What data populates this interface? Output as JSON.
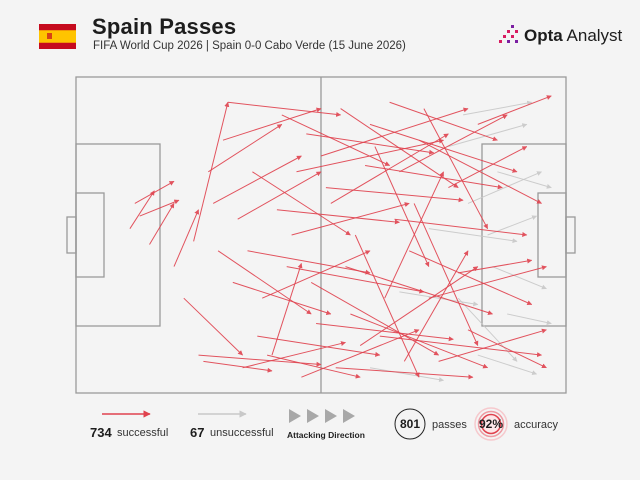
{
  "header": {
    "title": "Spain Passes",
    "subtitle": "FIFA World Cup 2026 | Spain 0-0 Cabo Verde (15 June 2026)",
    "brand_bold": "Opta",
    "brand_rest": " Analyst",
    "flag": "spain-flag",
    "brand_icon": "opta-logo-icon"
  },
  "colors": {
    "successful": "#e0424e",
    "unsuccessful": "#c8c8c8",
    "pitch_lines": "#9a9a9a",
    "flag_red": "#c60b1e",
    "flag_yellow": "#ffc400",
    "accent": "#d81b60"
  },
  "legend": {
    "successful_count": "734",
    "successful_label": "successful",
    "unsuccessful_count": "67",
    "unsuccessful_label": "unsuccessful",
    "direction_label": "Attacking Direction",
    "passes_value": "801",
    "passes_label": "passes",
    "accuracy_value": "92%",
    "accuracy_label": "accuracy",
    "accuracy_fraction": 0.92
  },
  "chart_data": {
    "type": "pass-map",
    "pitch": {
      "x_range": [
        0,
        100
      ],
      "y_range": [
        0,
        100
      ]
    },
    "attacking_direction": "left-to-right",
    "series": [
      {
        "name": "successful",
        "count": 734,
        "passes": [
          [
            12,
            40,
            20,
            33
          ],
          [
            13,
            44,
            21,
            39
          ],
          [
            15,
            53,
            20,
            40
          ],
          [
            11,
            48,
            16,
            36
          ],
          [
            24,
            52,
            31,
            8
          ],
          [
            20,
            60,
            25,
            42
          ],
          [
            25,
            88,
            50,
            91
          ],
          [
            26,
            90,
            40,
            93
          ],
          [
            34,
            92,
            55,
            84
          ],
          [
            40,
            88,
            46,
            59
          ],
          [
            45,
            30,
            75,
            20
          ],
          [
            50,
            25,
            80,
            10
          ],
          [
            55,
            60,
            85,
            75
          ],
          [
            60,
            15,
            90,
            30
          ],
          [
            62,
            82,
            95,
            88
          ],
          [
            65,
            45,
            92,
            50
          ],
          [
            70,
            20,
            95,
            40
          ],
          [
            72,
            70,
            96,
            60
          ],
          [
            48,
            65,
            74,
            88
          ],
          [
            52,
            40,
            76,
            18
          ],
          [
            58,
            85,
            82,
            60
          ],
          [
            66,
            30,
            88,
            12
          ],
          [
            68,
            55,
            93,
            72
          ],
          [
            74,
            90,
            96,
            80
          ],
          [
            36,
            30,
            56,
            50
          ],
          [
            38,
            70,
            60,
            55
          ],
          [
            42,
            12,
            64,
            28
          ],
          [
            44,
            50,
            68,
            40
          ],
          [
            54,
            10,
            78,
            35
          ],
          [
            56,
            75,
            84,
            92
          ],
          [
            30,
            20,
            50,
            10
          ],
          [
            32,
            65,
            52,
            75
          ],
          [
            28,
            40,
            46,
            25
          ],
          [
            46,
            95,
            70,
            80
          ],
          [
            64,
            8,
            86,
            20
          ],
          [
            76,
            35,
            92,
            22
          ],
          [
            78,
            62,
            93,
            58
          ],
          [
            80,
            80,
            96,
            92
          ],
          [
            82,
            15,
            97,
            6
          ],
          [
            57,
            50,
            70,
            95
          ],
          [
            61,
            22,
            72,
            60
          ],
          [
            63,
            70,
            75,
            30
          ],
          [
            67,
            90,
            80,
            55
          ],
          [
            69,
            40,
            82,
            85
          ],
          [
            71,
            10,
            84,
            48
          ],
          [
            35,
            55,
            60,
            62
          ],
          [
            37,
            82,
            62,
            88
          ],
          [
            41,
            42,
            66,
            46
          ],
          [
            43,
            60,
            71,
            68
          ],
          [
            47,
            18,
            73,
            24
          ],
          [
            49,
            78,
            77,
            83
          ],
          [
            51,
            35,
            79,
            39
          ],
          [
            53,
            92,
            81,
            95
          ],
          [
            59,
            28,
            87,
            35
          ],
          [
            22,
            70,
            34,
            88
          ],
          [
            27,
            30,
            42,
            15
          ],
          [
            33,
            45,
            50,
            30
          ],
          [
            39,
            88,
            58,
            95
          ],
          [
            31,
            8,
            54,
            12
          ],
          [
            29,
            55,
            48,
            75
          ]
        ]
      },
      {
        "name": "unsuccessful",
        "count": 67,
        "passes": [
          [
            78,
            70,
            90,
            90
          ],
          [
            80,
            40,
            95,
            30
          ],
          [
            85,
            60,
            96,
            67
          ],
          [
            82,
            88,
            94,
            94
          ],
          [
            76,
            22,
            92,
            15
          ],
          [
            86,
            30,
            97,
            35
          ],
          [
            88,
            75,
            97,
            78
          ],
          [
            84,
            50,
            94,
            44
          ],
          [
            79,
            12,
            93,
            8
          ],
          [
            60,
            92,
            75,
            96
          ],
          [
            66,
            68,
            82,
            72
          ],
          [
            72,
            48,
            90,
            52
          ]
        ]
      }
    ]
  }
}
